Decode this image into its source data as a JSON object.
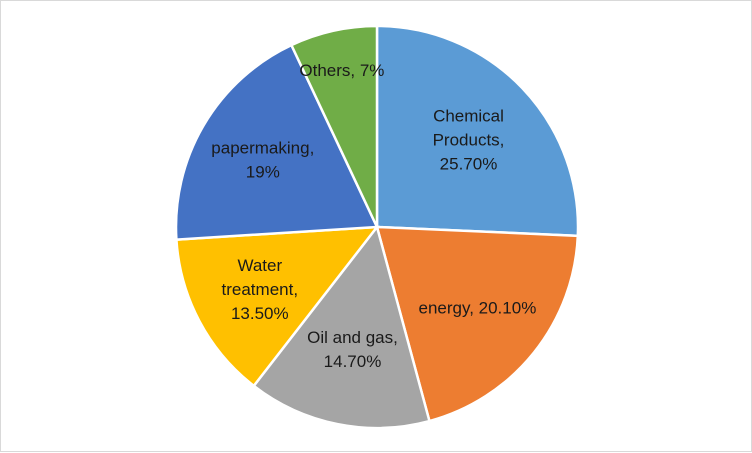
{
  "chart_data": {
    "type": "pie",
    "title": "",
    "slices": [
      {
        "name": "Chemical Products",
        "value": 25.7,
        "label_lines": [
          "Chemical",
          "Products,",
          "25.70%"
        ],
        "color": "#5b9bd5"
      },
      {
        "name": "energy",
        "value": 20.1,
        "label_lines": [
          "energy, 20.10%"
        ],
        "color": "#ed7d31"
      },
      {
        "name": "Oil and gas",
        "value": 14.7,
        "label_lines": [
          "Oil and gas,",
          "14.70%"
        ],
        "color": "#a5a5a5"
      },
      {
        "name": "Water treatment",
        "value": 13.5,
        "label_lines": [
          "Water",
          "treatment,",
          "13.50%"
        ],
        "color": "#ffc000"
      },
      {
        "name": "papermaking",
        "value": 19,
        "label_lines": [
          "papermaking,",
          "19%"
        ],
        "color": "#4472c4"
      },
      {
        "name": "Others",
        "value": 7,
        "label_lines": [
          "Others, 7%"
        ],
        "color": "#70ad47"
      }
    ]
  }
}
